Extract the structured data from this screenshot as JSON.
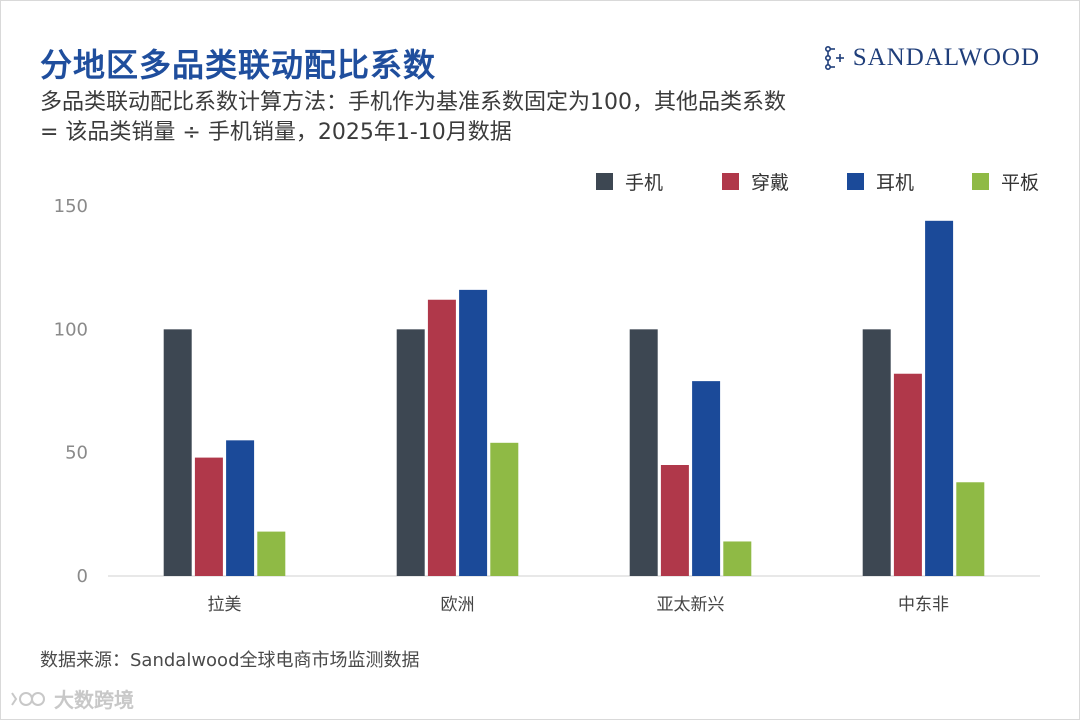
{
  "title": "分地区多品类联动配比系数",
  "subtitle": "多品类联动配比系数计算方法：手机作为基准系数固定为100，其他品类系数 = 该品类销量 ÷ 手机销量，2025年1-10月数据",
  "logo_text": "SANDALWOOD",
  "source": "数据来源：Sandalwood全球电商市场监测数据",
  "watermark": "大数跨境",
  "colors": {
    "title": "#1f4e9d",
    "phone": "#3d4752",
    "wearable": "#b0384a",
    "earphone": "#1b4a99",
    "tablet": "#8fba45"
  },
  "chart_data": {
    "type": "bar",
    "categories": [
      "拉美",
      "欧洲",
      "亚太新兴",
      "中东非"
    ],
    "series": [
      {
        "name": "手机",
        "color": "#3d4752",
        "values": [
          100,
          100,
          100,
          100
        ]
      },
      {
        "name": "穿戴",
        "color": "#b0384a",
        "values": [
          48,
          112,
          45,
          82
        ]
      },
      {
        "name": "耳机",
        "color": "#1b4a99",
        "values": [
          55,
          116,
          79,
          144
        ]
      },
      {
        "name": "平板",
        "color": "#8fba45",
        "values": [
          18,
          54,
          14,
          38
        ]
      }
    ],
    "yticks": [
      0,
      50,
      100,
      150
    ],
    "ylim": [
      0,
      150
    ],
    "grid": false,
    "legend_position": "top-right"
  }
}
